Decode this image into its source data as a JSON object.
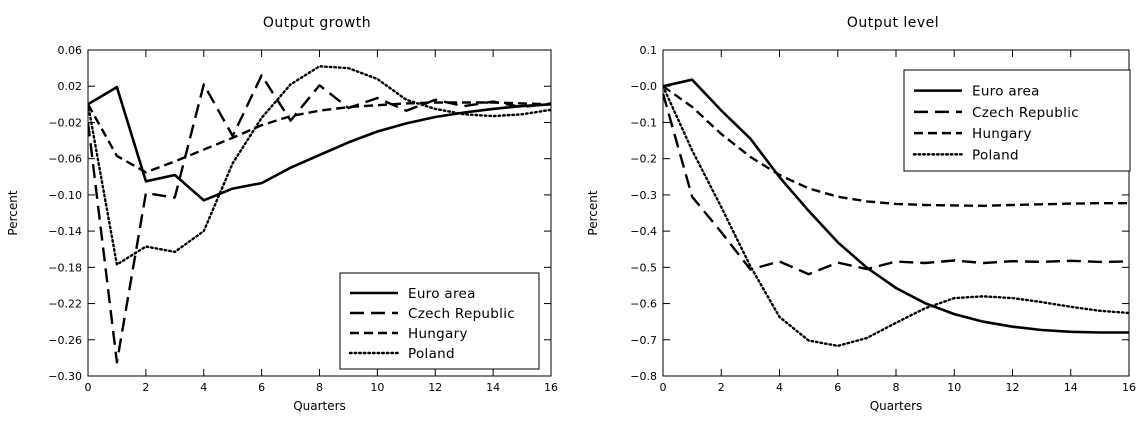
{
  "chart_data": [
    {
      "type": "line",
      "title": "Output growth",
      "xlabel": "Quarters",
      "ylabel": "Percent",
      "xlim": [
        0,
        16
      ],
      "ylim": [
        -0.3,
        0.06
      ],
      "xticks": [
        0,
        2,
        4,
        6,
        8,
        10,
        12,
        14,
        16
      ],
      "xtick_labels": [
        "0",
        "2",
        "4",
        "6",
        "8",
        "10",
        "12",
        "14",
        "16"
      ],
      "yticks": [
        -0.3,
        -0.26,
        -0.22,
        -0.18,
        -0.14,
        -0.1,
        -0.06,
        -0.02,
        0.02,
        0.06
      ],
      "ytick_labels": [
        "-0.30",
        "-0.26",
        "-0.22",
        "-0.18",
        "-0.14",
        "-0.10",
        "-0.06",
        "-0.02",
        "0.02",
        "0.06"
      ],
      "grid": false,
      "legend_position": "bottom-right",
      "x": [
        0,
        1,
        2,
        3,
        4,
        5,
        6,
        7,
        8,
        9,
        10,
        11,
        12,
        13,
        14,
        15,
        16
      ],
      "series": [
        {
          "name": "Euro area",
          "style": "solid",
          "values": [
            0.0,
            0.019,
            -0.085,
            -0.078,
            -0.106,
            -0.093,
            -0.087,
            -0.07,
            -0.056,
            -0.042,
            -0.03,
            -0.021,
            -0.014,
            -0.009,
            -0.005,
            -0.002,
            0.0
          ]
        },
        {
          "name": "Czech Republic",
          "style": "long-dash",
          "values": [
            -0.02,
            -0.285,
            -0.098,
            -0.103,
            0.022,
            -0.035,
            0.032,
            -0.018,
            0.021,
            -0.004,
            0.007,
            -0.007,
            0.005,
            -0.002,
            0.003,
            -0.003,
            0.001
          ]
        },
        {
          "name": "Hungary",
          "style": "dash",
          "values": [
            0.0,
            -0.057,
            -0.075,
            -0.063,
            -0.05,
            -0.037,
            -0.023,
            -0.013,
            -0.007,
            -0.003,
            -0.001,
            0.001,
            0.002,
            0.002,
            0.002,
            0.001,
            0.0
          ]
        },
        {
          "name": "Poland",
          "style": "dotted",
          "values": [
            0.0,
            -0.177,
            -0.157,
            -0.163,
            -0.14,
            -0.065,
            -0.015,
            0.022,
            0.042,
            0.04,
            0.028,
            0.005,
            -0.005,
            -0.011,
            -0.013,
            -0.011,
            -0.006
          ]
        }
      ]
    },
    {
      "type": "line",
      "title": "Output level",
      "xlabel": "Quarters",
      "ylabel": "Percent",
      "xlim": [
        0,
        16
      ],
      "ylim": [
        -0.8,
        0.1
      ],
      "xticks": [
        0,
        2,
        4,
        6,
        8,
        10,
        12,
        14,
        16
      ],
      "xtick_labels": [
        "0",
        "2",
        "4",
        "6",
        "8",
        "10",
        "12",
        "14",
        "16"
      ],
      "yticks": [
        -0.8,
        -0.7,
        -0.6,
        -0.5,
        -0.4,
        -0.3,
        -0.2,
        -0.1,
        0.0,
        0.1
      ],
      "ytick_labels": [
        "-0.8",
        "-0.7",
        "-0.6",
        "-0.5",
        "-0.4",
        "-0.3",
        "-0.2",
        "-0.1",
        "-0.0",
        "0.1"
      ],
      "grid": false,
      "legend_position": "top-right",
      "x": [
        0,
        1,
        2,
        3,
        4,
        5,
        6,
        7,
        8,
        9,
        10,
        11,
        12,
        13,
        14,
        15,
        16
      ],
      "series": [
        {
          "name": "Euro area",
          "style": "solid",
          "values": [
            0.0,
            0.018,
            -0.067,
            -0.145,
            -0.251,
            -0.344,
            -0.431,
            -0.501,
            -0.557,
            -0.599,
            -0.629,
            -0.65,
            -0.664,
            -0.673,
            -0.678,
            -0.68,
            -0.68
          ]
        },
        {
          "name": "Czech Republic",
          "style": "long-dash",
          "values": [
            -0.02,
            -0.305,
            -0.403,
            -0.506,
            -0.484,
            -0.519,
            -0.487,
            -0.505,
            -0.484,
            -0.488,
            -0.481,
            -0.488,
            -0.483,
            -0.485,
            -0.482,
            -0.485,
            -0.484
          ]
        },
        {
          "name": "Hungary",
          "style": "dash",
          "values": [
            0.0,
            -0.057,
            -0.132,
            -0.195,
            -0.245,
            -0.282,
            -0.305,
            -0.318,
            -0.325,
            -0.328,
            -0.329,
            -0.33,
            -0.328,
            -0.326,
            -0.324,
            -0.323,
            -0.323
          ]
        },
        {
          "name": "Poland",
          "style": "dotted",
          "values": [
            0.0,
            -0.177,
            -0.334,
            -0.497,
            -0.637,
            -0.702,
            -0.717,
            -0.695,
            -0.653,
            -0.613,
            -0.585,
            -0.58,
            -0.585,
            -0.596,
            -0.609,
            -0.62,
            -0.626
          ]
        }
      ]
    }
  ]
}
